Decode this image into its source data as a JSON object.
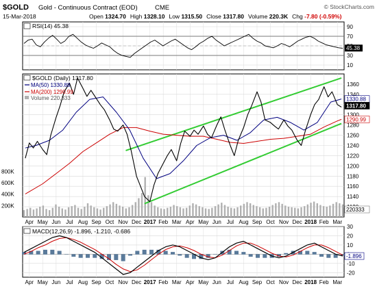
{
  "header": {
    "symbol": "$GOLD",
    "name": "Gold - Continuous Contract (EOD)",
    "exchange": "CME",
    "watermark": "© StockCharts.com",
    "date": "15-Mar-2018",
    "stats": [
      {
        "label": "Open",
        "value": "1324.70"
      },
      {
        "label": "High",
        "value": "1328.10"
      },
      {
        "label": "Low",
        "value": "1315.50"
      },
      {
        "label": "Close",
        "value": "1317.80"
      },
      {
        "label": "Volume",
        "value": "220.3K"
      },
      {
        "label": "Chg",
        "value": "-7.80 (-0.59%)",
        "color": "#d00000"
      }
    ]
  },
  "chart_data": [
    {
      "type": "line",
      "panel": "RSI",
      "label": "RSI(14) 45.38",
      "value": 45.38,
      "ylim": [
        0,
        100
      ],
      "y_ticks": [
        10,
        30,
        50,
        70,
        90
      ],
      "reference_lines": [
        70,
        30
      ],
      "last_value_label": "45.38",
      "series": [
        {
          "name": "RSI(14)",
          "color": "#000000",
          "values": [
            55,
            62,
            64,
            52,
            48,
            58,
            66,
            72,
            64,
            55,
            60,
            70,
            74,
            66,
            58,
            52,
            48,
            45,
            50,
            56,
            52,
            48,
            40,
            34,
            30,
            28,
            26,
            34,
            40,
            46,
            52,
            58,
            62,
            56,
            50,
            55,
            60,
            64,
            58,
            52,
            46,
            42,
            48,
            55,
            60,
            66,
            70,
            62,
            56,
            50,
            54,
            58,
            62,
            66,
            70,
            74,
            66,
            60,
            56,
            50,
            48,
            46,
            50,
            55,
            52,
            48,
            54,
            60,
            64,
            68,
            70,
            66,
            60,
            56,
            52,
            50,
            48,
            46,
            45
          ]
        }
      ]
    },
    {
      "type": "line",
      "panel": "Price",
      "title": "$GOLD (Daily) 1317.80",
      "ylim": [
        1100,
        1380
      ],
      "y_ticks": [
        1120,
        1140,
        1160,
        1180,
        1200,
        1220,
        1240,
        1260,
        1280,
        1300,
        1320,
        1340,
        1360
      ],
      "x_tick_labels": [
        "Apr",
        "May",
        "Jun",
        "Jul",
        "Aug",
        "Sep",
        "Oct",
        "Nov",
        "Dec",
        "2017",
        "Feb",
        "Mar",
        "Apr",
        "May",
        "Jun",
        "Jul",
        "Aug",
        "Sep",
        "Oct",
        "Nov",
        "Dec",
        "2018",
        "Feb",
        "Mar"
      ],
      "x_tick_positions": [
        0,
        1,
        2,
        3,
        4,
        5,
        6,
        7,
        8,
        9,
        10,
        11,
        12,
        13,
        14,
        15,
        16,
        17,
        18,
        19,
        20,
        21,
        22,
        23
      ],
      "x_domain": [
        -0.5,
        23.5
      ],
      "volume_axis_labels": [
        "200K",
        "400K",
        "600K",
        "800K"
      ],
      "price": {
        "name": "$GOLD (Daily) 1317.80",
        "color": "#000000",
        "x": [
          -0.3,
          0,
          0.3,
          0.6,
          1,
          1.3,
          1.6,
          2,
          2.3,
          2.6,
          3,
          3.3,
          3.6,
          4,
          4.3,
          4.6,
          5,
          5.3,
          5.6,
          6,
          6.3,
          6.6,
          7,
          7.3,
          7.6,
          8,
          8.3,
          8.6,
          9,
          9.3,
          9.6,
          10,
          10.3,
          10.6,
          11,
          11.3,
          11.6,
          12,
          12.3,
          12.6,
          13,
          13.3,
          13.6,
          14,
          14.3,
          14.6,
          15,
          15.3,
          15.6,
          16,
          16.3,
          16.6,
          17,
          17.3,
          17.6,
          18,
          18.3,
          18.6,
          19,
          19.3,
          19.6,
          20,
          20.3,
          20.6,
          21,
          21.3,
          21.6,
          22,
          22.3,
          22.6,
          23,
          23.3
        ],
        "y": [
          1215,
          1245,
          1235,
          1248,
          1232,
          1222,
          1260,
          1295,
          1318,
          1345,
          1362,
          1340,
          1372,
          1352,
          1336,
          1348,
          1332,
          1320,
          1310,
          1290,
          1272,
          1268,
          1280,
          1262,
          1230,
          1180,
          1160,
          1140,
          1130,
          1162,
          1185,
          1205,
          1220,
          1232,
          1210,
          1244,
          1268,
          1258,
          1270,
          1262,
          1278,
          1262,
          1255,
          1280,
          1296,
          1270,
          1240,
          1220,
          1250,
          1275,
          1300,
          1318,
          1345,
          1325,
          1290,
          1285,
          1278,
          1272,
          1290,
          1278,
          1270,
          1250,
          1240,
          1268,
          1300,
          1320,
          1330,
          1355,
          1335,
          1345,
          1320,
          1315
        ]
      },
      "ma50": {
        "name": "MA(50) 1330.88",
        "color": "#000080",
        "x": [
          -0.3,
          0.5,
          1.5,
          2.5,
          3.5,
          4.5,
          5.5,
          6.5,
          7.5,
          8.5,
          9.5,
          10.5,
          11.5,
          12.5,
          13.5,
          14.5,
          15.5,
          16.5,
          17.5,
          18.5,
          19.5,
          20.5,
          21.5,
          22.5,
          23.3
        ],
        "y": [
          1235,
          1240,
          1250,
          1270,
          1305,
          1330,
          1335,
          1305,
          1270,
          1215,
          1175,
          1185,
          1210,
          1240,
          1255,
          1260,
          1250,
          1265,
          1290,
          1295,
          1285,
          1270,
          1285,
          1325,
          1331
        ]
      },
      "ma200": {
        "name": "MA(200) 1290.99",
        "color": "#cc0000",
        "x": [
          -0.3,
          1,
          2,
          3,
          4,
          5,
          6,
          7,
          8,
          9,
          10,
          11,
          12,
          13,
          14,
          15,
          16,
          17,
          18,
          19,
          20,
          21,
          22,
          23,
          23.3
        ],
        "y": [
          1145,
          1165,
          1185,
          1205,
          1228,
          1245,
          1262,
          1275,
          1275,
          1268,
          1262,
          1260,
          1258,
          1258,
          1252,
          1246,
          1244,
          1248,
          1252,
          1254,
          1258,
          1262,
          1276,
          1288,
          1291
        ]
      },
      "trend_channel": {
        "color": "#33cc33",
        "upper": {
          "from": [
            7.2,
            1230
          ],
          "to": [
            23.3,
            1372
          ]
        },
        "lower": {
          "from": [
            8.6,
            1126
          ],
          "to": [
            23.3,
            1283
          ]
        }
      },
      "last_value_labels": [
        {
          "text": "1330.88",
          "value": 1330.88,
          "style": "ma50"
        },
        {
          "text": "1317.80",
          "value": 1317.8,
          "style": "price"
        },
        {
          "text": "1290.99",
          "value": 1290.99,
          "style": "ma200"
        }
      ],
      "volume": {
        "name": "Volume 220,333",
        "last_value_label": "220333",
        "values": [
          120,
          140,
          160,
          130,
          150,
          180,
          200,
          140,
          120,
          160,
          220,
          180,
          150,
          130,
          170,
          190,
          210,
          160,
          140,
          180,
          240,
          200,
          170,
          150,
          130,
          160,
          190,
          220,
          260,
          230,
          200,
          180,
          150,
          170,
          210,
          260,
          330,
          420,
          700,
          380,
          260,
          200,
          170,
          150,
          140,
          160,
          180,
          210,
          190,
          170,
          150,
          160,
          200,
          240,
          220,
          190,
          170,
          150,
          140,
          160,
          190,
          220,
          250,
          210,
          180,
          160,
          150,
          170,
          200,
          230,
          260,
          240,
          210,
          190,
          170,
          150,
          160,
          180,
          210,
          240,
          260,
          230,
          200,
          180,
          170,
          160,
          150,
          170,
          190,
          220,
          250,
          270,
          240,
          210,
          190,
          180,
          200,
          230,
          260,
          240,
          220
        ]
      }
    },
    {
      "type": "line",
      "panel": "MACD",
      "label": "MACD(12,26,9) -1.896, -1.210, -0.686",
      "ylim": [
        -25,
        30
      ],
      "y_ticks": [
        -20,
        -10,
        0,
        10,
        20,
        30
      ],
      "x_tick_labels": [
        "Apr",
        "May",
        "Jun",
        "Jul",
        "Aug",
        "Sep",
        "Oct",
        "Nov",
        "Dec",
        "2017",
        "Feb",
        "Mar",
        "Apr",
        "May",
        "Jun",
        "Jul",
        "Aug",
        "Sep",
        "Oct",
        "Nov",
        "Dec",
        "2018",
        "Feb",
        "Mar"
      ],
      "last_value_label": "-1.896",
      "series": [
        {
          "name": "MACD",
          "color": "#000000",
          "values": [
            2,
            6,
            10,
            14,
            18,
            20,
            18,
            14,
            10,
            6,
            2,
            -4,
            -10,
            -16,
            -22,
            -20,
            -14,
            -8,
            -2,
            4,
            8,
            10,
            8,
            4,
            0,
            -4,
            -6,
            -4,
            2,
            8,
            12,
            14,
            10,
            6,
            2,
            -2,
            -4,
            -2,
            2,
            6,
            10,
            12,
            8,
            4,
            0,
            -2
          ]
        },
        {
          "name": "Signal",
          "color": "#cc0000",
          "values": [
            0,
            3,
            7,
            10,
            14,
            17,
            18,
            16,
            13,
            9,
            5,
            0,
            -5,
            -11,
            -16,
            -19,
            -17,
            -12,
            -6,
            0,
            5,
            8,
            9,
            7,
            4,
            0,
            -3,
            -4,
            -1,
            4,
            9,
            12,
            12,
            9,
            5,
            1,
            -2,
            -3,
            -1,
            3,
            7,
            10,
            10,
            7,
            3,
            -1
          ]
        }
      ]
    }
  ]
}
